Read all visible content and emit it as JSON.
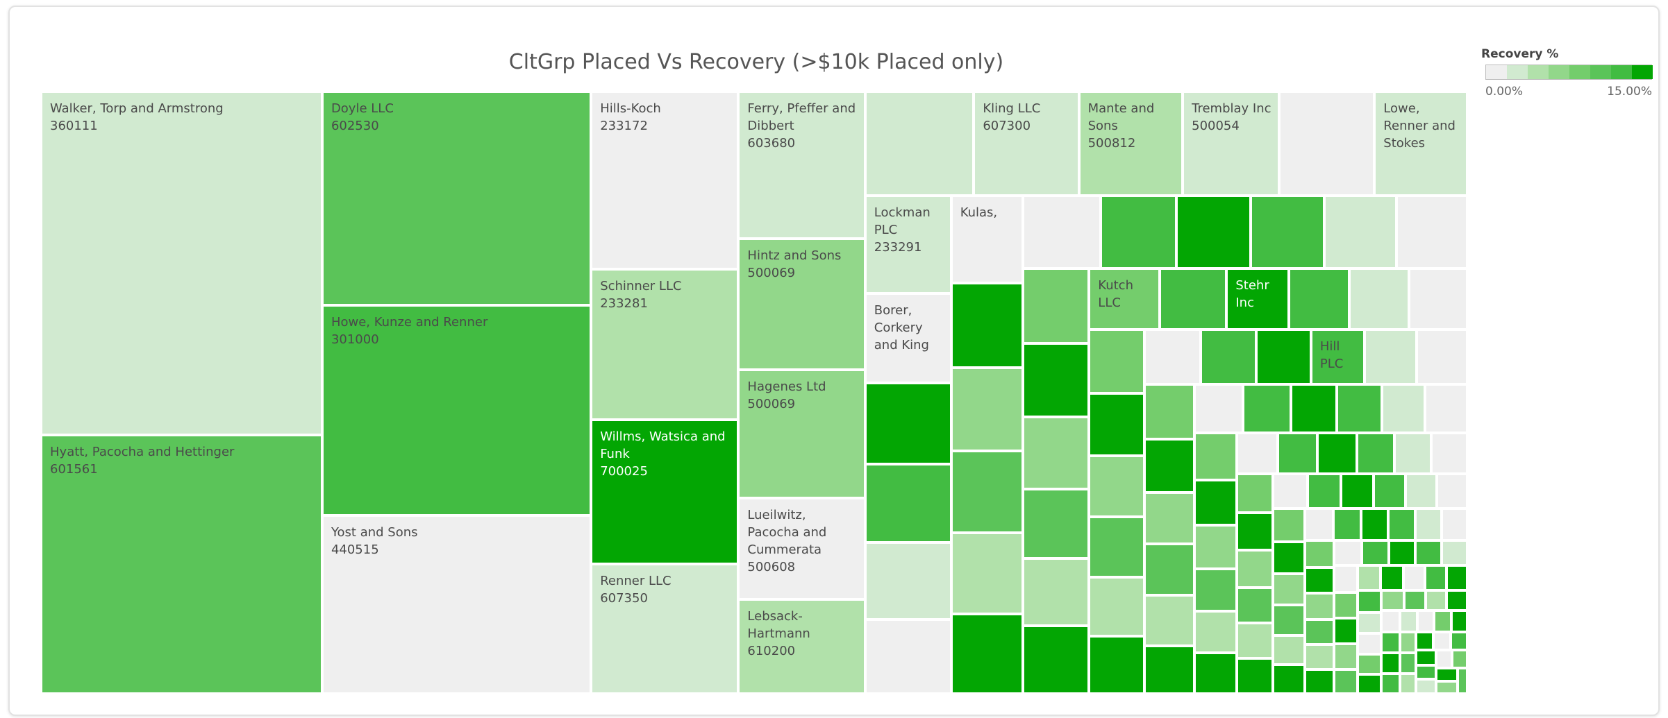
{
  "chart_data": {
    "type": "treemap",
    "title": "CltGrp Placed Vs Recovery (>$10k Placed only)",
    "categories": [
      "Walker, Torp and Armstrong",
      "Hyatt, Pacocha and Hettinger",
      "Doyle LLC",
      "Howe, Kunze and Renner",
      "Yost and Sons",
      "Hills-Koch",
      "Schinner LLC",
      "Willms, Watsica and Funk",
      "Renner LLC",
      "Ferry, Pfeffer and Dibbert",
      "Hintz and Sons",
      "Hagenes Ltd",
      "Lueilwitz, Pacocha and Cummerata",
      "Lebsack-Hartmann",
      null,
      "Kling LLC",
      "Mante and Sons",
      "Tremblay Inc",
      null,
      "Lowe, Renner and Stokes",
      "Lockman PLC",
      "Borer, Corkery and King",
      null,
      null,
      null,
      null,
      "Kulas,",
      null,
      null,
      null,
      null,
      null,
      null,
      null,
      null,
      null,
      null,
      null,
      null,
      null,
      null,
      null,
      null,
      null,
      "Kutch LLC",
      null,
      "Stehr Inc",
      null,
      null,
      null,
      null,
      null,
      null,
      null,
      null,
      null,
      null,
      null,
      null,
      "Hill PLC",
      null,
      null,
      null,
      null,
      null,
      null,
      null,
      null,
      null,
      null,
      null,
      null,
      null,
      null,
      null,
      null,
      null,
      null,
      null,
      null,
      null,
      null,
      null,
      null,
      null,
      null,
      null,
      null,
      null,
      null,
      null,
      null,
      null,
      null,
      null,
      null,
      null,
      null,
      null,
      null,
      null,
      null,
      null,
      null,
      null,
      null,
      null,
      null,
      null,
      null,
      null,
      null,
      null,
      null,
      null,
      null,
      null,
      null,
      null,
      null,
      null,
      null,
      null,
      null,
      null,
      null,
      null,
      null,
      null,
      null,
      null,
      null,
      null,
      null,
      null,
      null,
      null,
      null,
      null,
      null,
      null,
      null,
      null,
      null,
      null,
      null,
      null,
      null,
      null,
      null,
      null,
      null,
      null,
      null,
      null,
      null,
      null,
      null,
      null,
      null,
      null,
      null
    ],
    "ids": [
      "360111",
      "601561",
      "602530",
      "301000",
      "440515",
      "233172",
      "233281",
      "700025",
      "607350",
      "603680",
      "500069",
      "500069",
      "500608",
      "610200",
      null,
      "607300",
      "500812",
      "500054",
      null,
      null,
      "233291",
      null,
      null,
      null,
      null,
      null,
      null,
      null,
      null,
      null,
      null,
      null,
      null,
      null,
      null,
      null,
      null,
      null,
      null,
      null,
      null,
      null,
      null,
      null,
      null,
      null,
      null,
      null,
      null,
      null,
      null,
      null,
      null,
      null,
      null,
      null,
      null,
      null,
      null,
      null,
      null,
      null,
      null,
      null,
      null,
      null,
      null,
      null,
      null,
      null,
      null,
      null,
      null,
      null,
      null,
      null,
      null,
      null,
      null,
      null,
      null,
      null,
      null,
      null,
      null,
      null,
      null,
      null,
      null,
      null,
      null,
      null,
      null,
      null,
      null,
      null,
      null,
      null,
      null,
      null,
      null,
      null,
      null,
      null,
      null,
      null,
      null,
      null,
      null,
      null,
      null,
      null,
      null,
      null,
      null,
      null,
      null,
      null,
      null,
      null,
      null,
      null,
      null,
      null,
      null,
      null,
      null,
      null,
      null,
      null,
      null,
      null,
      null,
      null,
      null,
      null,
      null,
      null,
      null,
      null,
      null,
      null,
      null,
      null,
      null,
      null,
      null,
      null,
      null,
      null,
      null,
      null,
      null,
      null,
      null,
      null,
      null,
      null,
      null,
      null,
      null,
      null
    ],
    "values": [
      75.8,
      57,
      45,
      44.4,
      37.6,
      20.5,
      17.4,
      16.7,
      15,
      14.6,
      13,
      12.8,
      10,
      9.4,
      8.9,
      8.6,
      8.5,
      7.9,
      7.8,
      7.6,
      6.6,
      6,
      5.5,
      5.3,
      5.2,
      5.0,
      4.9,
      4.8,
      4.7,
      4.6,
      4.6,
      4.5,
      4.4,
      4.3,
      4.2,
      4.2,
      4.1,
      4.0,
      3.9,
      3.8,
      3.7,
      3.6,
      3.5,
      3.5,
      3.4,
      3.2,
      3.0,
      2.9,
      2.85,
      2.8,
      2.75,
      2.7,
      2.65,
      2.6,
      2.55,
      2.5,
      2.45,
      2.4,
      2.35,
      2.3,
      2.25,
      2.2,
      2.15,
      2.1,
      2.05,
      2.0,
      2.0,
      1.9,
      1.85,
      1.8,
      1.75,
      1.7,
      1.65,
      1.6,
      1.55,
      1.5,
      1.45,
      1.4,
      1.38,
      1.35,
      1.3,
      1.28,
      1.25,
      1.2,
      1.18,
      1.15,
      1.1,
      1.08,
      1.05,
      1.02,
      1.0,
      1.0,
      0.95,
      0.93,
      0.9,
      0.88,
      0.86,
      0.84,
      0.82,
      0.8,
      0.78,
      0.76,
      0.74,
      0.72,
      0.7,
      0.69,
      0.68,
      0.66,
      0.65,
      0.64,
      0.62,
      0.6,
      0.59,
      0.58,
      0.57,
      0.56,
      0.55,
      0.54,
      0.53,
      0.52,
      0.51,
      0.5,
      0.49,
      0.48,
      0.47,
      0.46,
      0.45,
      0.44,
      0.43,
      0.42,
      0.41,
      0.4,
      0.39,
      0.38,
      0.37,
      0.36,
      0.35,
      0.34,
      0.33,
      0.32,
      0.31,
      0.3,
      0.3,
      0.29,
      0.29,
      0.28,
      0.28,
      0.27,
      0.27,
      0.26,
      0.26,
      0.25,
      0.25,
      0.24,
      0.24,
      0.23,
      0.23,
      0.22,
      0.22,
      0.21,
      0.21,
      0.2
    ],
    "recovery": [
      2.5,
      10,
      10,
      12,
      0.5,
      0.5,
      4,
      14.5,
      2.5,
      2.5,
      6,
      6,
      0.5,
      4,
      2.5,
      2.5,
      4,
      2.5,
      0.5,
      2.5,
      2.5,
      0.5,
      14.5,
      12,
      2.5,
      0.5,
      0.5,
      14.5,
      6,
      10,
      4,
      14.5,
      0.5,
      12,
      14.5,
      12,
      2.5,
      0.5,
      8,
      14.5,
      6,
      10,
      4,
      14.5,
      8,
      12,
      14.5,
      12,
      2.5,
      0.5,
      8,
      14.5,
      6,
      10,
      4,
      14.5,
      0.5,
      12,
      14.5,
      12,
      2.5,
      0.5,
      8,
      14.5,
      6,
      10,
      4,
      14.5,
      0.5,
      12,
      14.5,
      12,
      2.5,
      0.5,
      8,
      14.5,
      6,
      10,
      4,
      14.5,
      0.5,
      12,
      14.5,
      12,
      2.5,
      0.5,
      8,
      14.5,
      6,
      10,
      4,
      14.5,
      0.5,
      12,
      14.5,
      12,
      2.5,
      0.5,
      8,
      14.5,
      6,
      10,
      4,
      14.5,
      0.5,
      12,
      14.5,
      12,
      2.5,
      0.5,
      8,
      14.5,
      6,
      10,
      4,
      14.5,
      0.5,
      12,
      14.5,
      12,
      2.5,
      0.5,
      8,
      14.5,
      6,
      10,
      4,
      14.5,
      0.5,
      12,
      14.5,
      12,
      2.5,
      0.5,
      8,
      14.5,
      6,
      10,
      4,
      14.5,
      0.5,
      12,
      14.5,
      12,
      2.5,
      0.5,
      8,
      14.5,
      6,
      10,
      4,
      14.5,
      0.5,
      12,
      14.5,
      12,
      2.5,
      0.5,
      8,
      14.5,
      6,
      10
    ],
    "legend": {
      "title": "Recovery %",
      "colors": [
        "#efefef",
        "#d1ead0",
        "#b1e1aa",
        "#92d78a",
        "#74cd6c",
        "#5bc459",
        "#42bc42",
        "#03a603"
      ],
      "lim": [
        0,
        15
      ],
      "ticks": [
        {
          "value": 0,
          "label": "0.00%"
        },
        {
          "value": 15,
          "label": "15.00%"
        }
      ]
    }
  }
}
